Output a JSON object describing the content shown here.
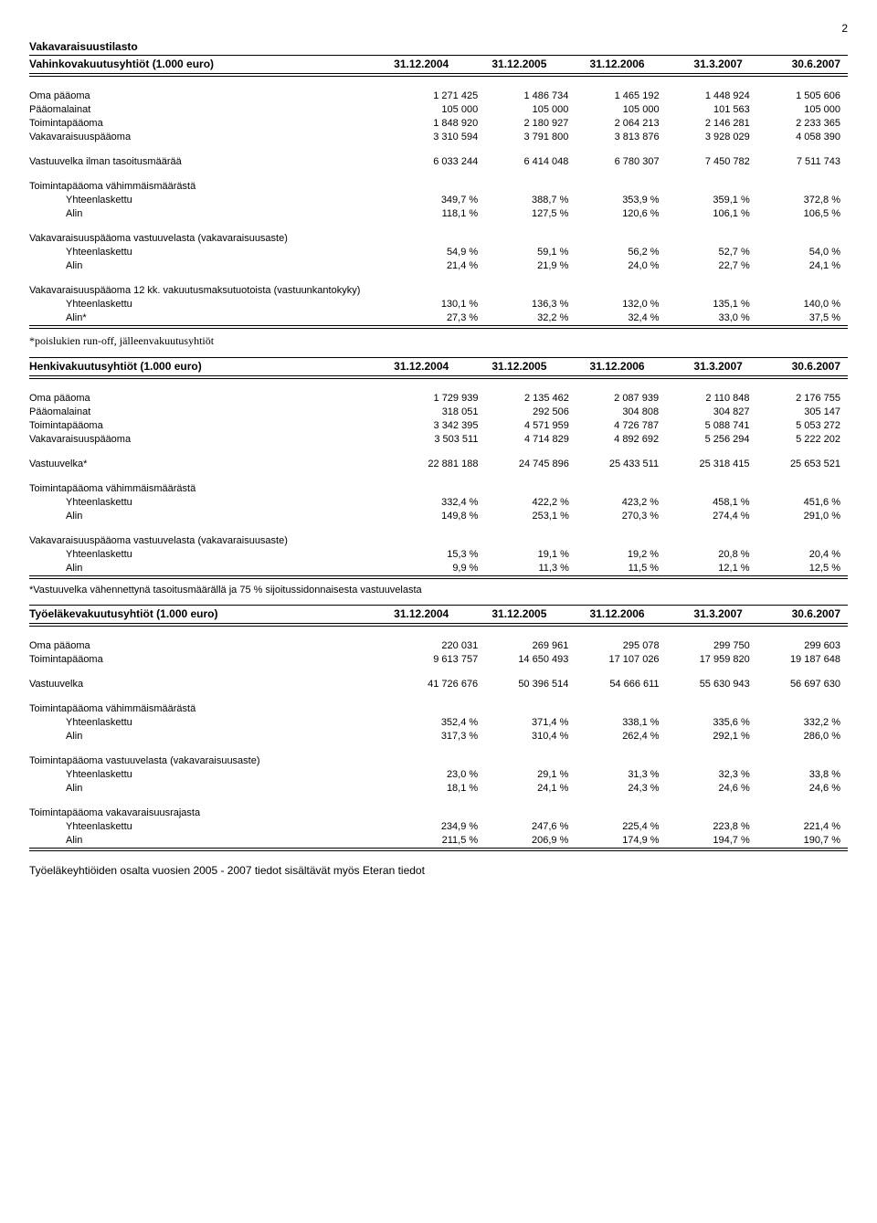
{
  "page_number": "2",
  "section1": {
    "title": "Vakavaraisuustilasto",
    "header_label": "Vahinkovakuutusyhtiöt (1.000 euro)",
    "cols": [
      "31.12.2004",
      "31.12.2005",
      "31.12.2006",
      "31.3.2007",
      "30.6.2007"
    ],
    "rows": [
      {
        "label": "Oma pääoma",
        "v": [
          "1 271 425",
          "1 486 734",
          "1 465 192",
          "1 448 924",
          "1 505 606"
        ]
      },
      {
        "label": "Pääomalainat",
        "v": [
          "105 000",
          "105 000",
          "105 000",
          "101 563",
          "105 000"
        ]
      },
      {
        "label": "Toimintapääoma",
        "v": [
          "1 848 920",
          "2 180 927",
          "2 064 213",
          "2 146 281",
          "2 233 365"
        ]
      },
      {
        "label": "Vakavaraisuuspääoma",
        "v": [
          "3 310 594",
          "3 791 800",
          "3 813 876",
          "3 928 029",
          "4 058 390"
        ]
      }
    ],
    "row_vastuuvelka": {
      "label": "Vastuuvelka ilman tasoitusmäärää",
      "v": [
        "6 033 244",
        "6 414 048",
        "6 780 307",
        "7 450 782",
        "7 511 743"
      ]
    },
    "group1": {
      "title": "Toimintapääoma vähimmäismäärästä",
      "rows": [
        {
          "label": "Yhteenlaskettu",
          "v": [
            "349,7 %",
            "388,7 %",
            "353,9 %",
            "359,1 %",
            "372,8 %"
          ]
        },
        {
          "label": "Alin",
          "v": [
            "118,1 %",
            "127,5 %",
            "120,6 %",
            "106,1 %",
            "106,5 %"
          ]
        }
      ]
    },
    "group2": {
      "title": "Vakavaraisuuspääoma vastuuvelasta (vakavaraisuusaste)",
      "rows": [
        {
          "label": "Yhteenlaskettu",
          "v": [
            "54,9 %",
            "59,1 %",
            "56,2 %",
            "52,7 %",
            "54,0 %"
          ]
        },
        {
          "label": "Alin",
          "v": [
            "21,4 %",
            "21,9 %",
            "24,0 %",
            "22,7 %",
            "24,1 %"
          ]
        }
      ]
    },
    "group3": {
      "title": "Vakavaraisuuspääoma 12 kk. vakuutusmaksutuotoista (vastuunkantokyky)",
      "rows": [
        {
          "label": "Yhteenlaskettu",
          "v": [
            "130,1 %",
            "136,3 %",
            "132,0 %",
            "135,1 %",
            "140,0 %"
          ]
        },
        {
          "label": "Alin*",
          "v": [
            "27,3 %",
            "32,2 %",
            "32,4 %",
            "33,0 %",
            "37,5 %"
          ]
        }
      ]
    },
    "footnote": "*poislukien run-off, jälleenvakuutusyhtiöt"
  },
  "section2": {
    "header_label": "Henkivakuutusyhtiöt (1.000 euro)",
    "cols": [
      "31.12.2004",
      "31.12.2005",
      "31.12.2006",
      "31.3.2007",
      "30.6.2007"
    ],
    "rows": [
      {
        "label": "Oma pääoma",
        "v": [
          "1 729 939",
          "2 135 462",
          "2 087 939",
          "2 110 848",
          "2 176 755"
        ]
      },
      {
        "label": "Pääomalainat",
        "v": [
          "318 051",
          "292 506",
          "304 808",
          "304 827",
          "305 147"
        ]
      },
      {
        "label": "Toimintapääoma",
        "v": [
          "3 342 395",
          "4 571 959",
          "4 726 787",
          "5 088 741",
          "5 053 272"
        ]
      },
      {
        "label": "Vakavaraisuuspääoma",
        "v": [
          "3 503 511",
          "4 714 829",
          "4 892 692",
          "5 256 294",
          "5 222 202"
        ]
      }
    ],
    "row_vastuuvelka": {
      "label": "Vastuuvelka*",
      "v": [
        "22 881 188",
        "24 745 896",
        "25 433 511",
        "25 318 415",
        "25 653 521"
      ]
    },
    "group1": {
      "title": "Toimintapääoma vähimmäismäärästä",
      "rows": [
        {
          "label": "Yhteenlaskettu",
          "v": [
            "332,4 %",
            "422,2 %",
            "423,2 %",
            "458,1 %",
            "451,6 %"
          ]
        },
        {
          "label": "Alin",
          "v": [
            "149,8 %",
            "253,1 %",
            "270,3 %",
            "274,4 %",
            "291,0 %"
          ]
        }
      ]
    },
    "group2": {
      "title": "Vakavaraisuuspääoma vastuuvelasta (vakavaraisuusaste)",
      "rows": [
        {
          "label": "Yhteenlaskettu",
          "v": [
            "15,3 %",
            "19,1 %",
            "19,2 %",
            "20,8 %",
            "20,4 %"
          ]
        },
        {
          "label": "Alin",
          "v": [
            "9,9 %",
            "11,3 %",
            "11,5 %",
            "12,1 %",
            "12,5 %"
          ]
        }
      ]
    },
    "footnote": "*Vastuuvelka vähennettynä tasoitusmäärällä ja 75 % sijoitussidonnaisesta vastuuvelasta"
  },
  "section3": {
    "header_label": "Työeläkevakuutusyhtiöt (1.000 euro)",
    "cols": [
      "31.12.2004",
      "31.12.2005",
      "31.12.2006",
      "31.3.2007",
      "30.6.2007"
    ],
    "rows": [
      {
        "label": "Oma pääoma",
        "v": [
          "220 031",
          "269 961",
          "295 078",
          "299 750",
          "299 603"
        ]
      },
      {
        "label": "Toimintapääoma",
        "v": [
          "9 613 757",
          "14 650 493",
          "17 107 026",
          "17 959 820",
          "19 187 648"
        ]
      }
    ],
    "row_vastuuvelka": {
      "label": "Vastuuvelka",
      "v": [
        "41 726 676",
        "50 396 514",
        "54 666 611",
        "55 630 943",
        "56 697 630"
      ]
    },
    "group1": {
      "title": "Toimintapääoma vähimmäismäärästä",
      "rows": [
        {
          "label": "Yhteenlaskettu",
          "v": [
            "352,4 %",
            "371,4 %",
            "338,1 %",
            "335,6 %",
            "332,2 %"
          ]
        },
        {
          "label": "Alin",
          "v": [
            "317,3 %",
            "310,4 %",
            "262,4 %",
            "292,1 %",
            "286,0 %"
          ]
        }
      ]
    },
    "group2": {
      "title": "Toimintapääoma vastuuvelasta (vakavaraisuusaste)",
      "rows": [
        {
          "label": "Yhteenlaskettu",
          "v": [
            "23,0 %",
            "29,1 %",
            "31,3 %",
            "32,3 %",
            "33,8 %"
          ]
        },
        {
          "label": "Alin",
          "v": [
            "18,1 %",
            "24,1 %",
            "24,3 %",
            "24,6 %",
            "24,6 %"
          ]
        }
      ]
    },
    "group3": {
      "title": "Toimintapääoma vakavaraisuusrajasta",
      "rows": [
        {
          "label": "Yhteenlaskettu",
          "v": [
            "234,9 %",
            "247,6 %",
            "225,4 %",
            "223,8 %",
            "221,4 %"
          ]
        },
        {
          "label": "Alin",
          "v": [
            "211,5 %",
            "206,9 %",
            "174,9 %",
            "194,7 %",
            "190,7 %"
          ]
        }
      ]
    }
  },
  "bottom_note": "Työeläkeyhtiöiden osalta vuosien 2005 - 2007 tiedot sisältävät myös Eteran tiedot"
}
